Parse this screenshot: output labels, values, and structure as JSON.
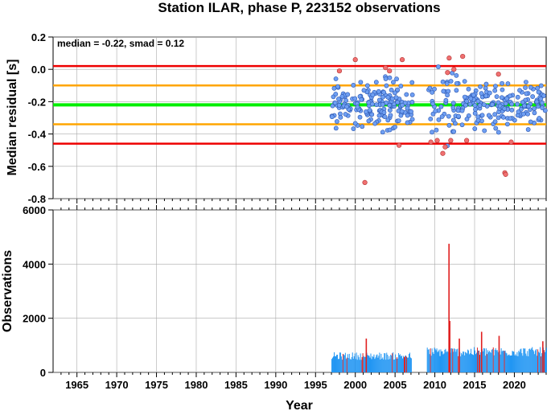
{
  "title": "Station ILAR, phase P, 223152 observations",
  "colors": {
    "point": "#6f9ff2",
    "outlier": "#f07070",
    "median": "#00ee00",
    "smad1": "#ffa500",
    "smad2": "#ee0000",
    "bars": "#2196f3",
    "bars_hi": "#e02020",
    "grid": "#aaaaaa"
  },
  "chart_data": [
    {
      "type": "scatter",
      "ylabel": "Median residual [s]",
      "annotation": "median = -0.22, smad = 0.12",
      "xlim": [
        1962,
        2024
      ],
      "ylim": [
        -0.8,
        0.2
      ],
      "yticks": [
        "0.2",
        "0.0",
        "-0.2",
        "-0.4",
        "-0.6",
        "-0.8"
      ],
      "hlines": [
        {
          "name": "median",
          "y": -0.22
        },
        {
          "name": "+1 smad",
          "y": -0.1
        },
        {
          "name": "-1 smad",
          "y": -0.34
        },
        {
          "name": "+2 smad",
          "y": 0.02
        },
        {
          "name": "-2 smad",
          "y": -0.46
        }
      ],
      "data_range": [
        1997,
        2024
      ],
      "outliers": [
        [
          1998.0,
          -0.01
        ],
        [
          2000.0,
          0.06
        ],
        [
          2001.2,
          -0.7
        ],
        [
          2003.8,
          0.01
        ],
        [
          2004.3,
          -0.01
        ],
        [
          2005.5,
          -0.47
        ],
        [
          2005.9,
          0.06
        ],
        [
          2009.5,
          -0.45
        ],
        [
          2010.3,
          -0.44
        ],
        [
          2011.0,
          -0.52
        ],
        [
          2011.3,
          -0.48
        ],
        [
          2011.6,
          -0.02
        ],
        [
          2011.8,
          0.07
        ],
        [
          2012.0,
          -0.44
        ],
        [
          2012.4,
          0.0
        ],
        [
          2013.5,
          0.08
        ],
        [
          2014.0,
          -0.44
        ],
        [
          2018.0,
          -0.03
        ],
        [
          2018.8,
          -0.64
        ],
        [
          2018.9,
          -0.65
        ],
        [
          2019.6,
          -0.45
        ]
      ]
    },
    {
      "type": "bar",
      "xlabel": "Year",
      "ylabel": "Observations",
      "xlim": [
        1962,
        2024
      ],
      "ylim": [
        0,
        6000
      ],
      "xticks": [
        "1965",
        "1970",
        "1975",
        "1980",
        "1985",
        "1990",
        "1995",
        "2000",
        "2005",
        "2010",
        "2015",
        "2020"
      ],
      "yticks": [
        "6000",
        "4000",
        "2000",
        "0"
      ],
      "segments": [
        {
          "from": 1997.0,
          "to": 2007.0,
          "typical": 620
        },
        {
          "from": 2009.0,
          "to": 2024.0,
          "typical": 780
        }
      ],
      "peaks": [
        {
          "x": 2001.3,
          "y": 1250
        },
        {
          "x": 2011.7,
          "y": 4750
        },
        {
          "x": 2011.8,
          "y": 1900
        },
        {
          "x": 2013.0,
          "y": 1250
        },
        {
          "x": 2015.8,
          "y": 1500
        },
        {
          "x": 2018.0,
          "y": 1350
        },
        {
          "x": 2023.5,
          "y": 1150
        }
      ]
    }
  ]
}
